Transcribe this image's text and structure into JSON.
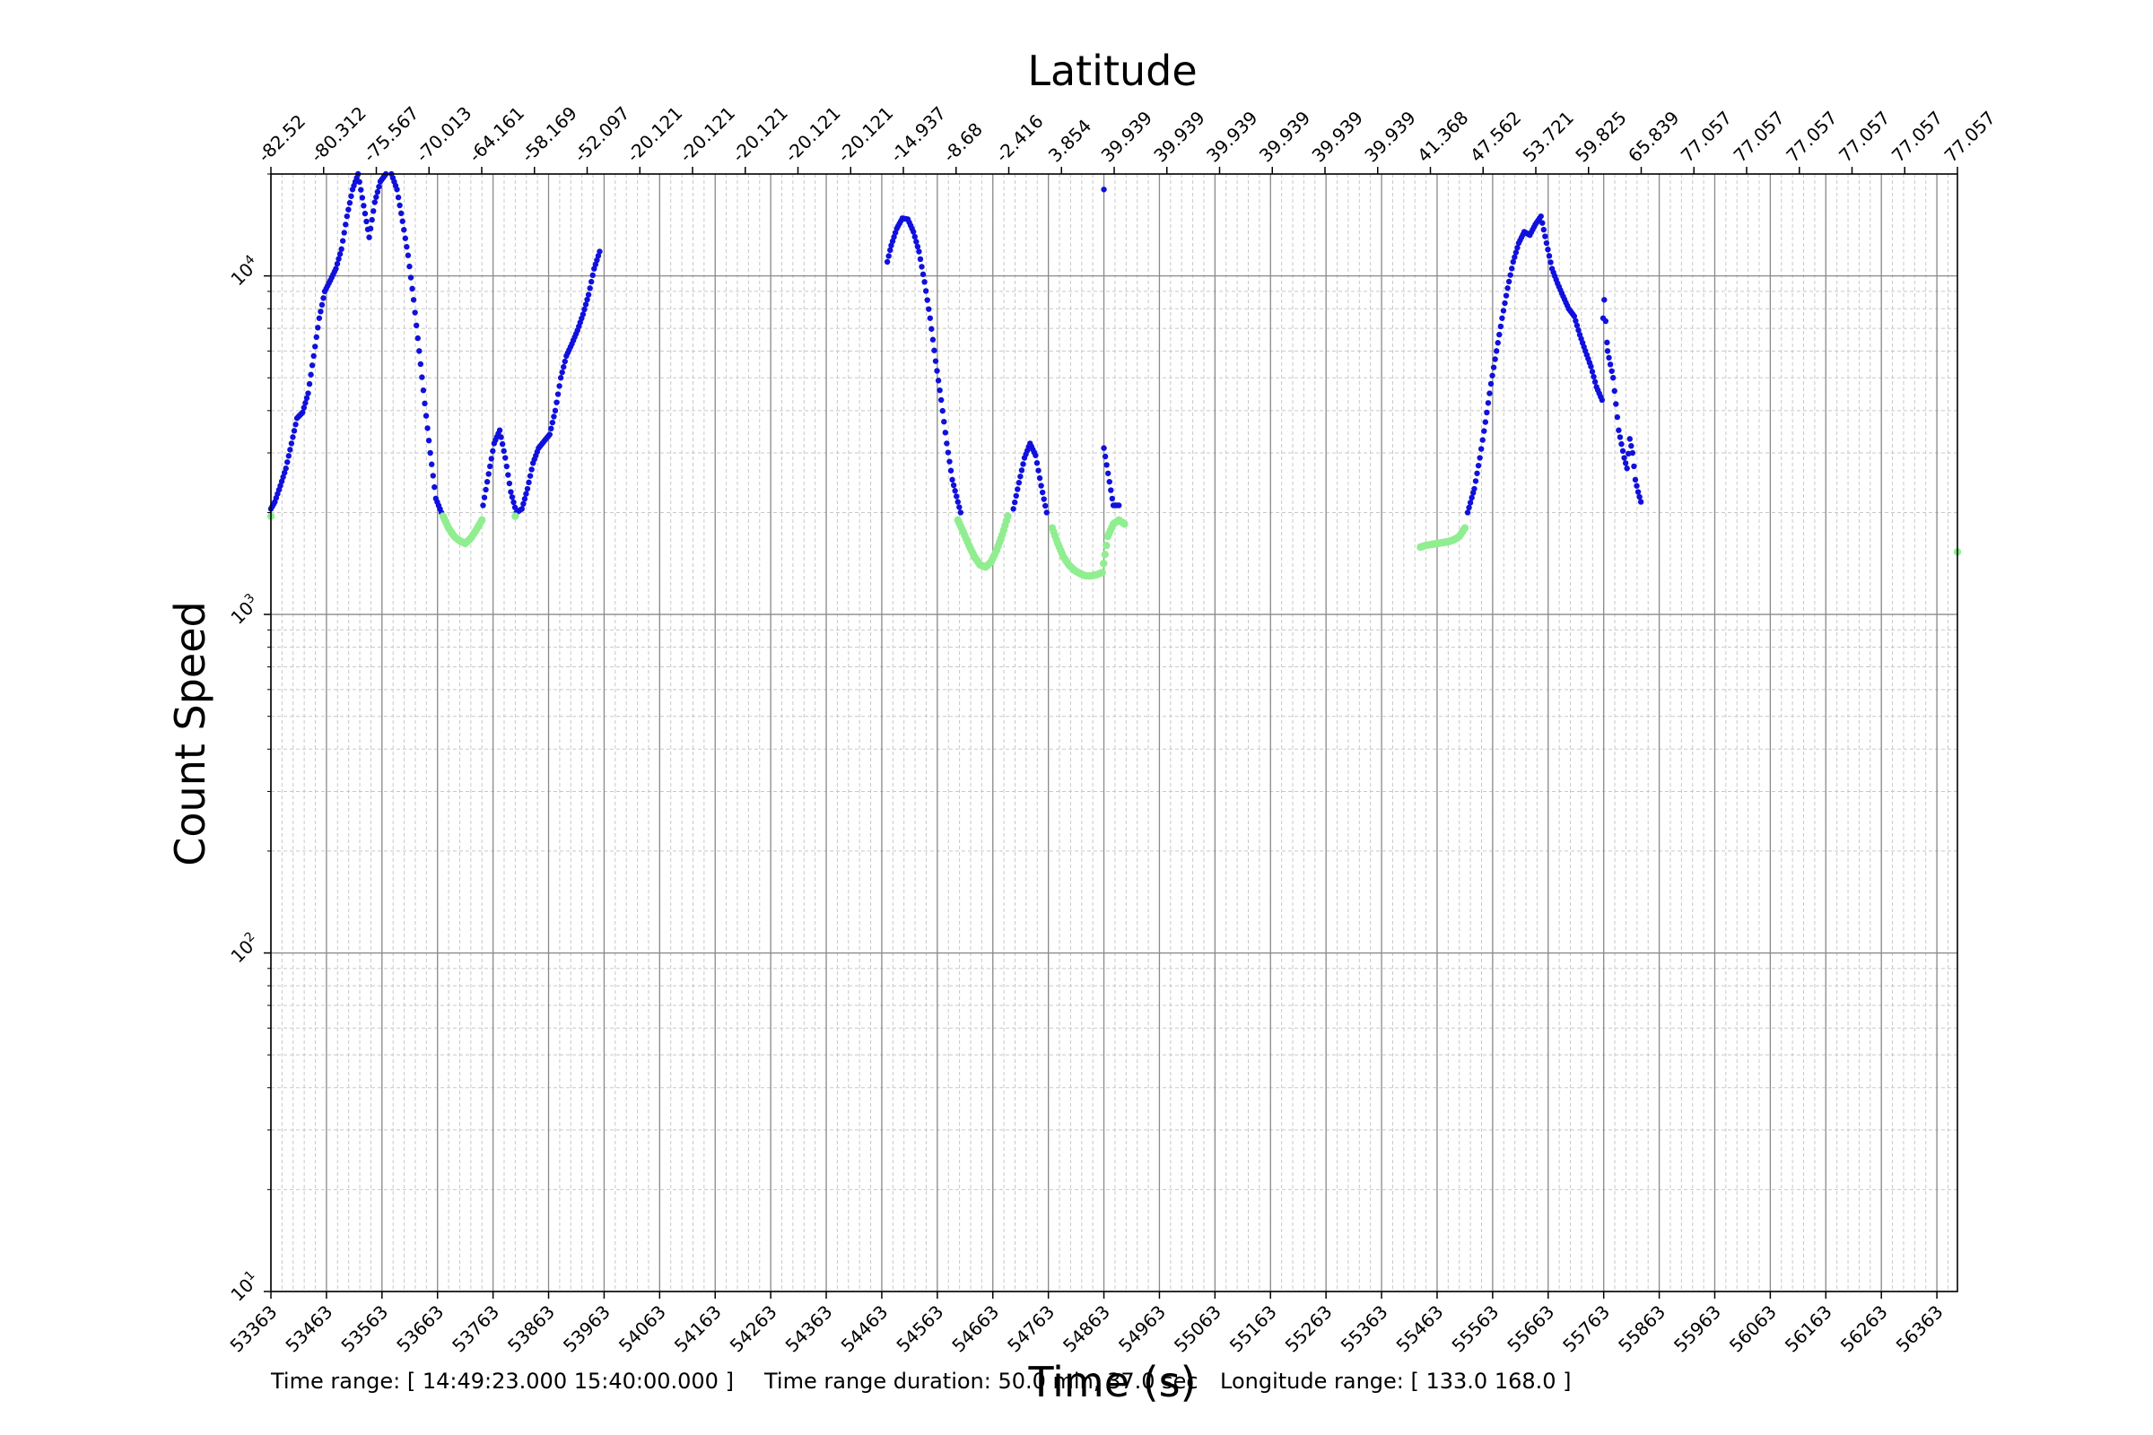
{
  "chart_data": {
    "type": "scatter",
    "title": "Latitude",
    "xlabel": "Time (s)",
    "ylabel": "Count Speed",
    "yscale": "log",
    "xlim": [
      53363,
      56400
    ],
    "ylim": [
      10,
      20000
    ],
    "x_ticks": [
      "53363",
      "53463",
      "53563",
      "53663",
      "53763",
      "53863",
      "53963",
      "54063",
      "54163",
      "54263",
      "54363",
      "54463",
      "54563",
      "54663",
      "54763",
      "54863",
      "54963",
      "55063",
      "55163",
      "55263",
      "55363",
      "55463",
      "55563",
      "55663",
      "55763",
      "55863",
      "55963",
      "56063",
      "56163",
      "56263",
      "56363"
    ],
    "top_ticks": [
      "-82.52",
      "-80.312",
      "-75.567",
      "-70.013",
      "-64.161",
      "-58.169",
      "-52.097",
      "-20.121",
      "-20.121",
      "-20.121",
      "-20.121",
      "-20.121",
      "-14.937",
      "-8.68",
      "-2.416",
      "3.854",
      "39.939",
      "39.939",
      "39.939",
      "39.939",
      "39.939",
      "39.939",
      "41.368",
      "47.562",
      "53.721",
      "59.825",
      "65.839",
      "77.057",
      "77.057",
      "77.057",
      "77.057",
      "77.057",
      "77.057"
    ],
    "y_ticks": [
      {
        "base": "10",
        "exp": "1"
      },
      {
        "base": "10",
        "exp": "2"
      },
      {
        "base": "10",
        "exp": "3"
      },
      {
        "base": "10",
        "exp": "4"
      }
    ],
    "grid": true,
    "colors": {
      "above": "#1010dd",
      "below": "#90ee90"
    },
    "series": [
      {
        "color": "above",
        "points": [
          [
            53363,
            2050
          ],
          [
            53370,
            2150
          ],
          [
            53380,
            2400
          ],
          [
            53390,
            2700
          ],
          [
            53400,
            3200
          ],
          [
            53410,
            3800
          ],
          [
            53420,
            3950
          ],
          [
            53430,
            4500
          ],
          [
            53440,
            5800
          ],
          [
            53450,
            7500
          ],
          [
            53460,
            9000
          ],
          [
            53470,
            9700
          ],
          [
            53480,
            10500
          ],
          [
            53490,
            12000
          ],
          [
            53500,
            15000
          ],
          [
            53510,
            18000
          ],
          [
            53520,
            20000
          ],
          [
            53540,
            13000
          ],
          [
            53550,
            16500
          ],
          [
            53560,
            19000
          ],
          [
            53570,
            20000
          ],
          [
            53580,
            20000
          ],
          [
            53590,
            18000
          ],
          [
            53600,
            14500
          ],
          [
            53610,
            11500
          ],
          [
            53620,
            8500
          ],
          [
            53630,
            6000
          ],
          [
            53640,
            4200
          ],
          [
            53650,
            3000
          ],
          [
            53660,
            2200
          ],
          [
            53670,
            2000
          ],
          [
            53745,
            2100
          ],
          [
            53755,
            2600
          ],
          [
            53765,
            3200
          ],
          [
            53775,
            3500
          ],
          [
            53785,
            2900
          ],
          [
            53795,
            2300
          ],
          [
            53805,
            2000
          ],
          [
            53815,
            2050
          ],
          [
            53825,
            2350
          ],
          [
            53835,
            2800
          ],
          [
            53845,
            3100
          ],
          [
            53855,
            3250
          ],
          [
            53865,
            3400
          ],
          [
            53875,
            4000
          ],
          [
            53885,
            5000
          ],
          [
            53895,
            5800
          ],
          [
            53905,
            6300
          ],
          [
            53915,
            6900
          ],
          [
            53925,
            7700
          ],
          [
            53935,
            8800
          ],
          [
            53945,
            10500
          ],
          [
            53955,
            11800
          ],
          [
            54473,
            11000
          ],
          [
            54480,
            12300
          ],
          [
            54490,
            13800
          ],
          [
            54500,
            14800
          ],
          [
            54510,
            14700
          ],
          [
            54520,
            13500
          ],
          [
            54530,
            11800
          ],
          [
            54540,
            9600
          ],
          [
            54550,
            7500
          ],
          [
            54560,
            5600
          ],
          [
            54570,
            4300
          ],
          [
            54580,
            3200
          ],
          [
            54590,
            2500
          ],
          [
            54600,
            2150
          ],
          [
            54605,
            2000
          ],
          [
            54700,
            2050
          ],
          [
            54710,
            2450
          ],
          [
            54720,
            2900
          ],
          [
            54730,
            3200
          ],
          [
            54740,
            2950
          ],
          [
            54750,
            2400
          ],
          [
            54760,
            2000
          ],
          [
            54863,
            18000
          ],
          [
            54863,
            3100
          ],
          [
            54880,
            2100
          ],
          [
            54890,
            2100
          ],
          [
            55518,
            2000
          ],
          [
            55530,
            2350
          ],
          [
            55540,
            2900
          ],
          [
            55550,
            3700
          ],
          [
            55560,
            4800
          ],
          [
            55570,
            6000
          ],
          [
            55580,
            7500
          ],
          [
            55590,
            9200
          ],
          [
            55600,
            11000
          ],
          [
            55610,
            12500
          ],
          [
            55620,
            13500
          ],
          [
            55630,
            13200
          ],
          [
            55640,
            14200
          ],
          [
            55650,
            15000
          ],
          [
            55660,
            12500
          ],
          [
            55670,
            10500
          ],
          [
            55680,
            9500
          ],
          [
            55690,
            8700
          ],
          [
            55700,
            8000
          ],
          [
            55710,
            7600
          ],
          [
            55720,
            6700
          ],
          [
            55730,
            6000
          ],
          [
            55740,
            5400
          ],
          [
            55750,
            4700
          ],
          [
            55760,
            4300
          ],
          [
            55762,
            7500
          ],
          [
            55764,
            8500
          ],
          [
            55770,
            6000
          ],
          [
            55780,
            5000
          ],
          [
            55790,
            3500
          ],
          [
            55800,
            2900
          ],
          [
            55805,
            2700
          ],
          [
            55810,
            3300
          ],
          [
            55815,
            3000
          ],
          [
            55820,
            2500
          ],
          [
            55825,
            2300
          ],
          [
            55830,
            2150
          ]
        ]
      },
      {
        "color": "below",
        "points": [
          [
            53363,
            1950
          ],
          [
            53673,
            1950
          ],
          [
            53683,
            1800
          ],
          [
            53693,
            1700
          ],
          [
            53703,
            1650
          ],
          [
            53713,
            1620
          ],
          [
            53723,
            1680
          ],
          [
            53733,
            1780
          ],
          [
            53743,
            1900
          ],
          [
            53803,
            1950
          ],
          [
            54600,
            1900
          ],
          [
            54610,
            1750
          ],
          [
            54620,
            1600
          ],
          [
            54630,
            1480
          ],
          [
            54640,
            1400
          ],
          [
            54650,
            1380
          ],
          [
            54660,
            1430
          ],
          [
            54670,
            1550
          ],
          [
            54680,
            1720
          ],
          [
            54690,
            1950
          ],
          [
            54770,
            1800
          ],
          [
            54780,
            1620
          ],
          [
            54790,
            1480
          ],
          [
            54800,
            1400
          ],
          [
            54810,
            1350
          ],
          [
            54820,
            1320
          ],
          [
            54830,
            1300
          ],
          [
            54840,
            1300
          ],
          [
            54850,
            1310
          ],
          [
            54860,
            1330
          ],
          [
            54870,
            1700
          ],
          [
            54880,
            1850
          ],
          [
            54890,
            1900
          ],
          [
            54900,
            1850
          ],
          [
            55433,
            1580
          ],
          [
            55443,
            1600
          ],
          [
            55453,
            1610
          ],
          [
            55463,
            1620
          ],
          [
            55473,
            1630
          ],
          [
            55483,
            1640
          ],
          [
            55493,
            1660
          ],
          [
            55503,
            1700
          ],
          [
            55513,
            1800
          ],
          [
            56400,
            1530
          ]
        ]
      }
    ]
  },
  "footer": {
    "time_range": "Time range: [ 14:49:23.000  15:40:00.000 ]",
    "duration": "Time range duration: 50.0 min, 37.0 sec",
    "longitude": "Longitude range: [ 133.0  168.0 ]"
  }
}
